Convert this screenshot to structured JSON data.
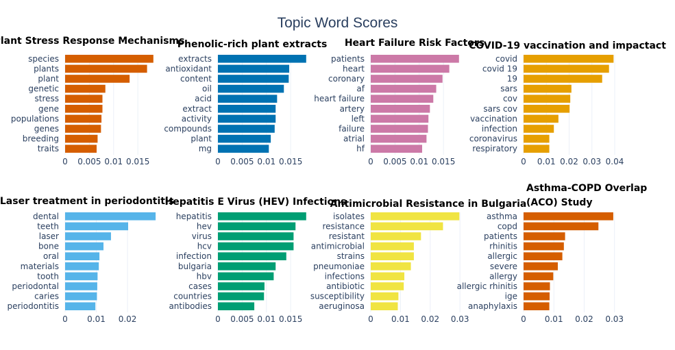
{
  "title": "Topic Word Scores",
  "chart_data": [
    {
      "type": "bar",
      "orientation": "horizontal",
      "title": "Plant Stress Response Mechanisms",
      "color": "#D55E00",
      "categories": [
        "species",
        "plants",
        "plant",
        "genetic",
        "stress",
        "gene",
        "populations",
        "genes",
        "breeding",
        "traits"
      ],
      "values": [
        0.0182,
        0.0169,
        0.0133,
        0.0083,
        0.0077,
        0.0077,
        0.0075,
        0.0074,
        0.0067,
        0.0065
      ],
      "xlim": [
        0,
        0.0195
      ],
      "xticks": [
        0,
        0.005,
        0.01,
        0.015
      ],
      "xtick_labels": [
        "0",
        "0.005",
        "0.01",
        "0.015"
      ]
    },
    {
      "type": "bar",
      "orientation": "horizontal",
      "title": "Phenolic-rich plant extracts",
      "color": "#0072B2",
      "categories": [
        "extracts",
        "antioxidant",
        "content",
        "oil",
        "acid",
        "extract",
        "activity",
        "compounds",
        "plant",
        "mg"
      ],
      "values": [
        0.0182,
        0.0147,
        0.0146,
        0.0136,
        0.0122,
        0.0119,
        0.0119,
        0.0117,
        0.0109,
        0.0105
      ],
      "xlim": [
        0,
        0.0195
      ],
      "xticks": [
        0,
        0.005,
        0.01,
        0.015
      ],
      "xtick_labels": [
        "0",
        "0.005",
        "0.01",
        "0.015"
      ]
    },
    {
      "type": "bar",
      "orientation": "horizontal",
      "title": "Heart Failure Risk Factors",
      "color": "#CC79A7",
      "categories": [
        "patients",
        "heart",
        "coronary",
        "af",
        "heart failure",
        "artery",
        "left",
        "failure",
        "atrial",
        "hf"
      ],
      "values": [
        0.0182,
        0.0162,
        0.0148,
        0.0135,
        0.0129,
        0.0122,
        0.0119,
        0.0118,
        0.0115,
        0.0106
      ],
      "xlim": [
        0,
        0.0195
      ],
      "xticks": [
        0,
        0.005,
        0.01,
        0.015
      ],
      "xtick_labels": [
        "0",
        "0.005",
        "0.01",
        "0.015"
      ]
    },
    {
      "type": "bar",
      "orientation": "horizontal",
      "title": "COVID-19 vaccination and impactact",
      "color": "#E69F00",
      "categories": [
        "covid",
        "covid 19",
        "19",
        "sars",
        "cov",
        "sars cov",
        "vaccination",
        "infection",
        "coronavirus",
        "respiratory"
      ],
      "values": [
        0.0395,
        0.0375,
        0.0345,
        0.021,
        0.0205,
        0.0202,
        0.0153,
        0.0133,
        0.0113,
        0.0113
      ],
      "xlim": [
        0,
        0.0415
      ],
      "xticks": [
        0,
        0.01,
        0.02,
        0.03,
        0.04
      ],
      "xtick_labels": [
        "0",
        "0.01",
        "0.02",
        "0.03",
        "0.04"
      ]
    },
    {
      "type": "bar",
      "orientation": "horizontal",
      "title": "Laser treatment in periodontitis",
      "color": "#56B4E9",
      "categories": [
        "dental",
        "teeth",
        "laser",
        "bone",
        "oral",
        "materials",
        "tooth",
        "periodontal",
        "caries",
        "periodontitis"
      ],
      "values": [
        0.029,
        0.0202,
        0.0147,
        0.0123,
        0.011,
        0.0108,
        0.0104,
        0.0103,
        0.0102,
        0.0097
      ],
      "xlim": [
        0,
        0.0303
      ],
      "xticks": [
        0,
        0.01,
        0.02
      ],
      "xtick_labels": [
        "0",
        "0.01",
        "0.02"
      ]
    },
    {
      "type": "bar",
      "orientation": "horizontal",
      "title": "Hepatitis E Virus (HEV) Infections",
      "color": "#009E73",
      "categories": [
        "hepatitis",
        "hev",
        "virus",
        "hcv",
        "infection",
        "bulgaria",
        "hbv",
        "cases",
        "countries",
        "antibodies"
      ],
      "values": [
        0.0182,
        0.016,
        0.0156,
        0.0156,
        0.0141,
        0.0119,
        0.0115,
        0.0096,
        0.0095,
        0.0075
      ],
      "xlim": [
        0,
        0.0195
      ],
      "xticks": [
        0,
        0.005,
        0.01,
        0.015
      ],
      "xtick_labels": [
        "0",
        "0.005",
        "0.01",
        "0.015"
      ]
    },
    {
      "type": "bar",
      "orientation": "horizontal",
      "title": "Antimicrobial Resistance in Bulgaria",
      "color": "#F0E442",
      "categories": [
        "isolates",
        "resistance",
        "resistant",
        "antimicrobial",
        "strains",
        "pneumoniae",
        "infections",
        "antibiotic",
        "susceptibility",
        "aeruginosa"
      ],
      "values": [
        0.0298,
        0.0243,
        0.0169,
        0.0145,
        0.0145,
        0.0135,
        0.0113,
        0.0111,
        0.0093,
        0.0091
      ],
      "xlim": [
        0,
        0.0318
      ],
      "xticks": [
        0,
        0.01,
        0.02,
        0.03
      ],
      "xtick_labels": [
        "0",
        "0.01",
        "0.02",
        "0.03"
      ]
    },
    {
      "type": "bar",
      "orientation": "horizontal",
      "title": "Asthma-COPD Overlap (ACO) Study",
      "title_lines": [
        "Asthma-COPD Overlap",
        "(ACO) Study"
      ],
      "color": "#D55E00",
      "categories": [
        "asthma",
        "copd",
        "patients",
        "rhinitis",
        "allergic",
        "severe",
        "allergy",
        "allergic rhinitis",
        "ige",
        "anaphylaxis"
      ],
      "values": [
        0.0296,
        0.0247,
        0.0137,
        0.0133,
        0.0128,
        0.0113,
        0.0098,
        0.0087,
        0.0086,
        0.0085
      ],
      "xlim": [
        0,
        0.0312
      ],
      "xticks": [
        0,
        0.01,
        0.02,
        0.03
      ],
      "xtick_labels": [
        "0",
        "0.01",
        "0.02",
        "0.03"
      ]
    }
  ]
}
